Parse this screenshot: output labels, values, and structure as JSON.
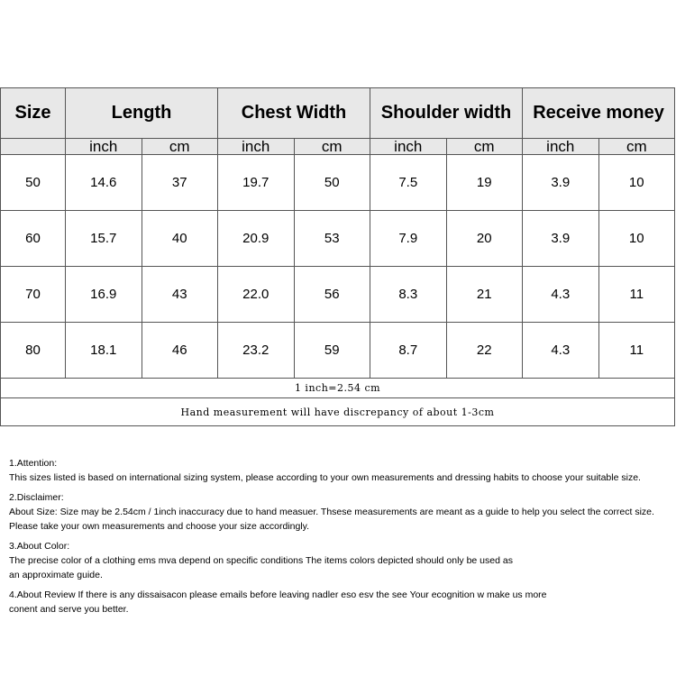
{
  "table": {
    "headers": [
      "Size",
      "Length",
      "Chest Width",
      "Shoulder width",
      "Receive money"
    ],
    "units": [
      "inch",
      "cm",
      "inch",
      "cm",
      "inch",
      "cm",
      "inch",
      "cm"
    ],
    "rows": [
      [
        "50",
        "14.6",
        "37",
        "19.7",
        "50",
        "7.5",
        "19",
        "3.9",
        "10"
      ],
      [
        "60",
        "15.7",
        "40",
        "20.9",
        "53",
        "7.9",
        "20",
        "3.9",
        "10"
      ],
      [
        "70",
        "16.9",
        "43",
        "22.0",
        "56",
        "8.3",
        "21",
        "4.3",
        "11"
      ],
      [
        "80",
        "18.1",
        "46",
        "23.2",
        "59",
        "8.7",
        "22",
        "4.3",
        "11"
      ]
    ],
    "note1": "1 inch=2.54 cm",
    "note2": "Hand measurement will have discrepancy of about 1-3cm"
  },
  "notes": [
    {
      "title": "1.Attention:",
      "lines": [
        "This sizes listed is based on international sizing system, please according to your own measurements and dressing habits to choose your suitable size."
      ]
    },
    {
      "title": "2.Disclaimer:",
      "lines": [
        "About Size: Size may be 2.54cm / 1inch inaccuracy due to hand measuer. Thsese measurements are meant as a guide to help you select the correct size.",
        "Please take your own measurements and choose your size accordingly."
      ]
    },
    {
      "title": "3.About Color:",
      "lines": [
        "The precise color of a clothing ems mva depend on specific conditions The items colors depicted should only be used as",
        "an approximate guide."
      ]
    },
    {
      "title": "",
      "lines": [
        "4.About Review If there is any dissaisacon please emails before leaving nadler eso esv the see Your ecognition w make us more",
        "conent and serve you better."
      ]
    }
  ]
}
